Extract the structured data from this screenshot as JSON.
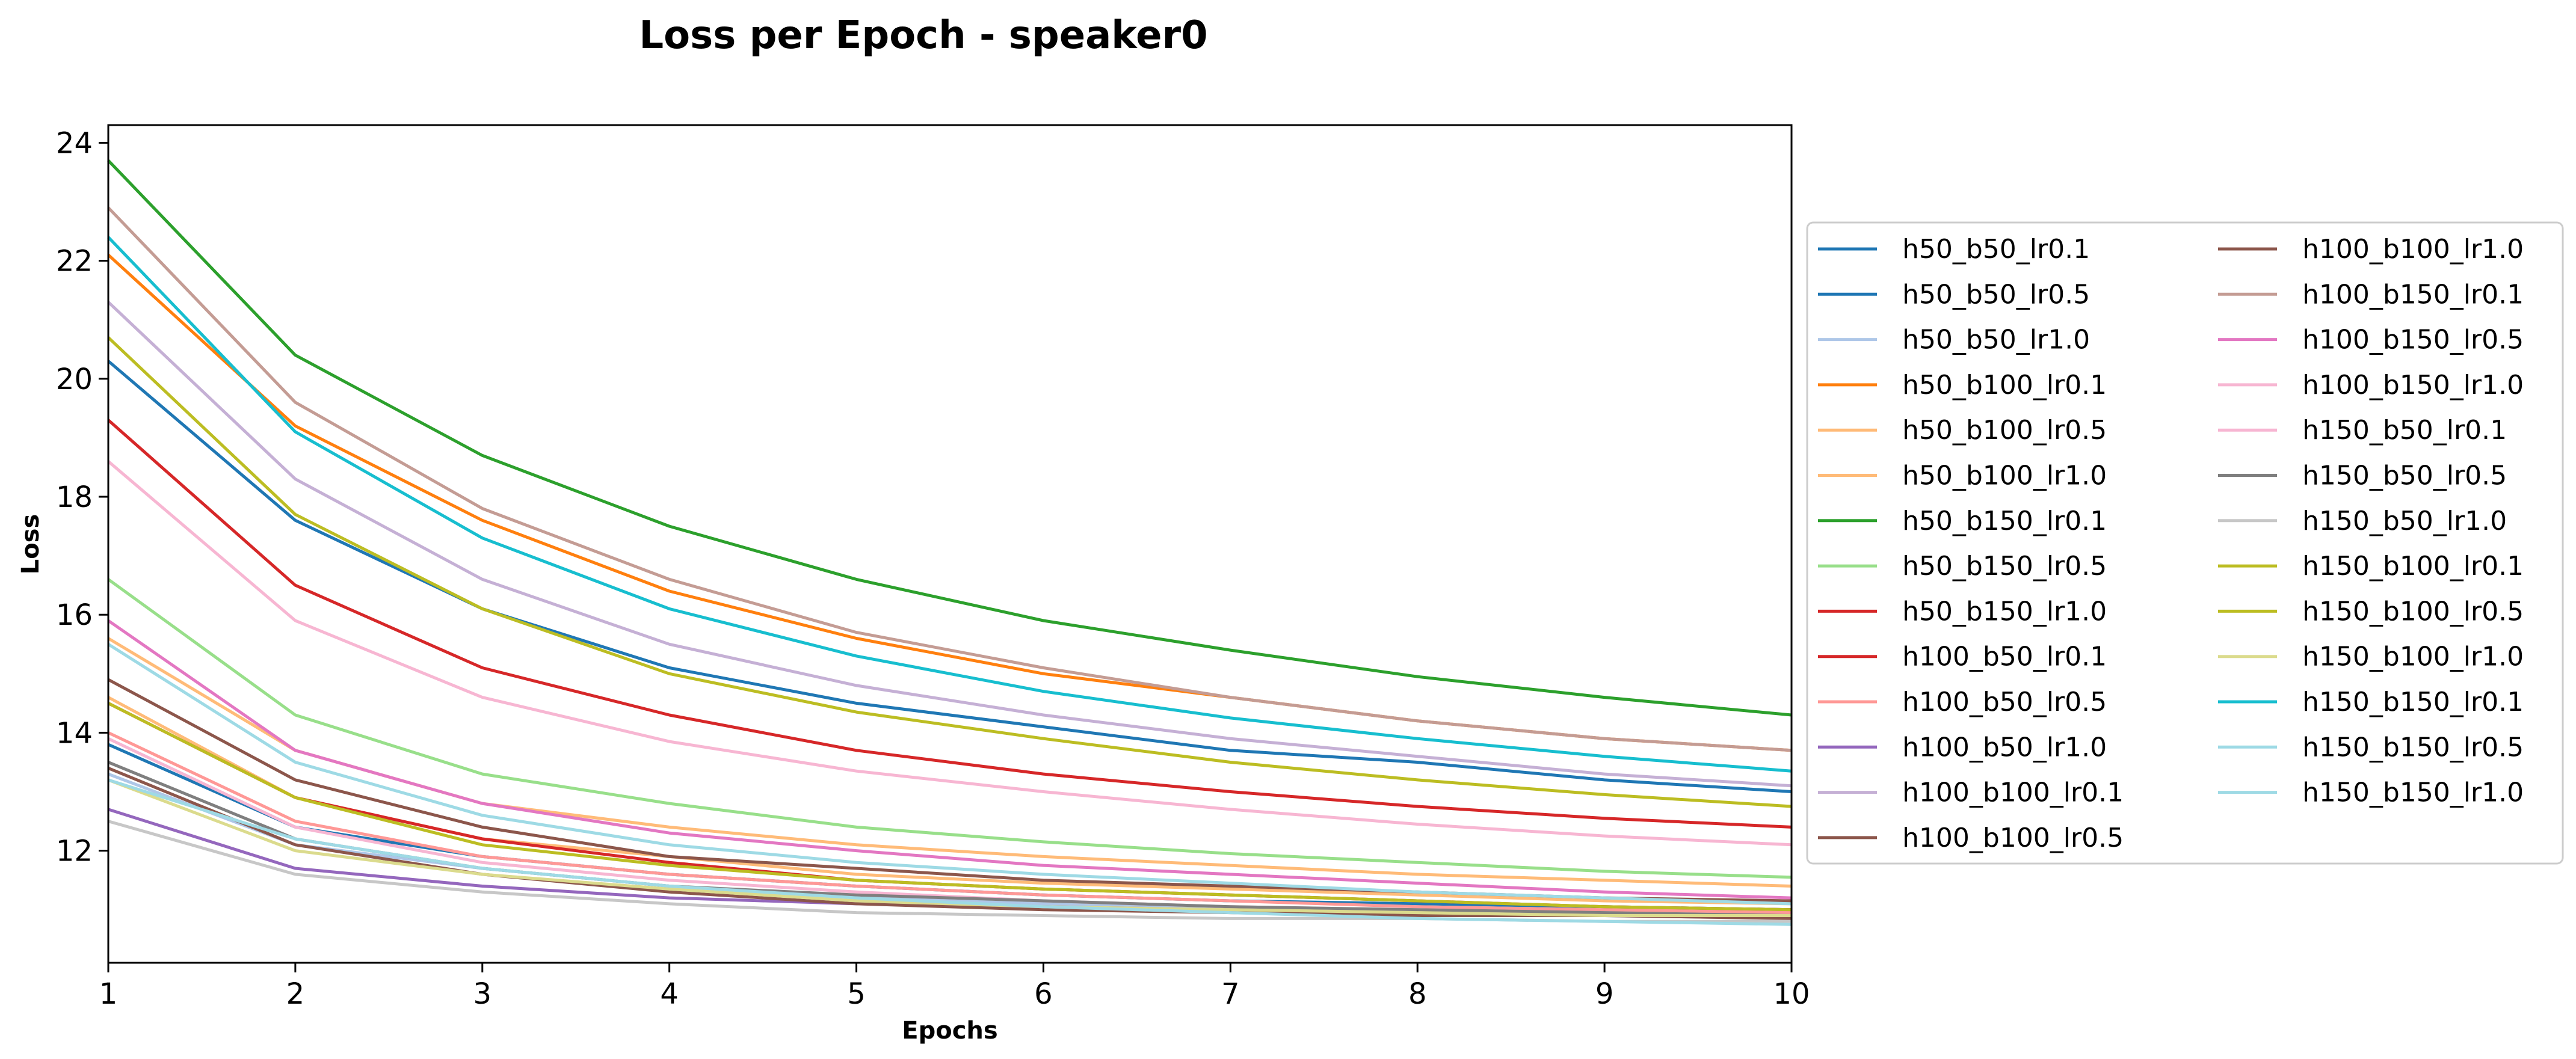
{
  "chart_data": {
    "type": "line",
    "title": "Loss per Epoch - speaker0",
    "xlabel": "Epochs",
    "ylabel": "Loss",
    "x": [
      1,
      2,
      3,
      4,
      5,
      6,
      7,
      8,
      9,
      10
    ],
    "xlim": [
      1,
      10
    ],
    "ylim": [
      10.1,
      24.3
    ],
    "xticks": [
      "1",
      "2",
      "3",
      "4",
      "5",
      "6",
      "7",
      "8",
      "9",
      "10"
    ],
    "yticks": [
      12,
      14,
      16,
      18,
      20,
      22,
      24
    ],
    "grid": false,
    "legend_placement": "right",
    "legend_columns": 2,
    "series": [
      {
        "name": "h50_b50_lr0.1",
        "color": "#1f77b4",
        "values": [
          20.3,
          17.6,
          16.1,
          15.1,
          14.5,
          14.1,
          13.7,
          13.5,
          13.2,
          13.0
        ]
      },
      {
        "name": "h50_b50_lr0.5",
        "color": "#1f77b4",
        "values": [
          13.8,
          12.4,
          11.9,
          11.6,
          11.4,
          11.25,
          11.15,
          11.1,
          11.05,
          11.0
        ]
      },
      {
        "name": "h50_b50_lr1.0",
        "color": "#aec7e8",
        "values": [
          13.3,
          12.1,
          11.7,
          11.4,
          11.2,
          11.1,
          11.0,
          10.95,
          10.9,
          10.85
        ]
      },
      {
        "name": "h50_b100_lr0.1",
        "color": "#ff7f0e",
        "values": [
          22.1,
          19.2,
          17.6,
          16.4,
          15.6,
          15.0,
          14.6,
          14.2,
          13.9,
          13.7
        ]
      },
      {
        "name": "h50_b100_lr0.5",
        "color": "#ffbb78",
        "values": [
          15.6,
          13.7,
          12.8,
          12.4,
          12.1,
          11.9,
          11.75,
          11.6,
          11.5,
          11.4
        ]
      },
      {
        "name": "h50_b100_lr1.0",
        "color": "#ffbb78",
        "values": [
          14.6,
          12.9,
          12.2,
          11.9,
          11.6,
          11.45,
          11.35,
          11.25,
          11.15,
          11.1
        ]
      },
      {
        "name": "h50_b150_lr0.1",
        "color": "#2ca02c",
        "values": [
          23.7,
          20.4,
          18.7,
          17.5,
          16.6,
          15.9,
          15.4,
          14.95,
          14.6,
          14.3
        ]
      },
      {
        "name": "h50_b150_lr0.5",
        "color": "#98df8a",
        "values": [
          16.6,
          14.3,
          13.3,
          12.8,
          12.4,
          12.15,
          11.95,
          11.8,
          11.65,
          11.55
        ]
      },
      {
        "name": "h50_b150_lr1.0",
        "color": "#d62728",
        "values": [
          14.5,
          12.9,
          12.2,
          11.8,
          11.5,
          11.35,
          11.25,
          11.15,
          11.05,
          11.0
        ]
      },
      {
        "name": "h100_b50_lr0.1",
        "color": "#d62728",
        "values": [
          19.3,
          16.5,
          15.1,
          14.3,
          13.7,
          13.3,
          13.0,
          12.75,
          12.55,
          12.4
        ]
      },
      {
        "name": "h100_b50_lr0.5",
        "color": "#ff9896",
        "values": [
          14.0,
          12.5,
          11.9,
          11.6,
          11.4,
          11.25,
          11.15,
          11.05,
          11.0,
          10.95
        ]
      },
      {
        "name": "h100_b50_lr1.0",
        "color": "#9467bd",
        "values": [
          12.7,
          11.7,
          11.4,
          11.2,
          11.1,
          11.05,
          11.0,
          10.95,
          10.9,
          10.9
        ]
      },
      {
        "name": "h100_b100_lr0.1",
        "color": "#c5b0d5",
        "values": [
          21.3,
          18.3,
          16.6,
          15.5,
          14.8,
          14.3,
          13.9,
          13.6,
          13.3,
          13.1
        ]
      },
      {
        "name": "h100_b100_lr0.5",
        "color": "#8c564b",
        "values": [
          13.4,
          12.1,
          11.6,
          11.3,
          11.1,
          11.0,
          10.95,
          10.9,
          10.9,
          10.85
        ]
      },
      {
        "name": "h100_b100_lr1.0",
        "color": "#8c564b",
        "values": [
          14.9,
          13.2,
          12.4,
          11.9,
          11.7,
          11.5,
          11.4,
          11.3,
          11.2,
          11.15
        ]
      },
      {
        "name": "h100_b150_lr0.1",
        "color": "#c49c94",
        "values": [
          22.9,
          19.6,
          17.8,
          16.6,
          15.7,
          15.1,
          14.6,
          14.2,
          13.9,
          13.7
        ]
      },
      {
        "name": "h100_b150_lr0.5",
        "color": "#e377c2",
        "values": [
          15.9,
          13.7,
          12.8,
          12.3,
          12.0,
          11.75,
          11.6,
          11.45,
          11.3,
          11.2
        ]
      },
      {
        "name": "h100_b150_lr1.0",
        "color": "#f7b6d2",
        "values": [
          13.9,
          12.4,
          11.8,
          11.5,
          11.3,
          11.15,
          11.05,
          11.0,
          10.95,
          10.9
        ]
      },
      {
        "name": "h150_b50_lr0.1",
        "color": "#f7b6d2",
        "values": [
          18.6,
          15.9,
          14.6,
          13.85,
          13.35,
          13.0,
          12.7,
          12.45,
          12.25,
          12.1
        ]
      },
      {
        "name": "h150_b50_lr0.5",
        "color": "#7f7f7f",
        "values": [
          13.5,
          12.2,
          11.7,
          11.4,
          11.25,
          11.15,
          11.05,
          11.0,
          10.95,
          10.9
        ]
      },
      {
        "name": "h150_b50_lr1.0",
        "color": "#c7c7c7",
        "values": [
          12.5,
          11.6,
          11.3,
          11.1,
          10.95,
          10.9,
          10.85,
          10.85,
          10.8,
          10.8
        ]
      },
      {
        "name": "h150_b100_lr0.1",
        "color": "#bcbd22",
        "values": [
          20.7,
          17.7,
          16.1,
          15.0,
          14.35,
          13.9,
          13.5,
          13.2,
          12.95,
          12.75
        ]
      },
      {
        "name": "h150_b100_lr0.5",
        "color": "#bcbd22",
        "values": [
          14.5,
          12.9,
          12.1,
          11.75,
          11.5,
          11.35,
          11.25,
          11.15,
          11.05,
          11.0
        ]
      },
      {
        "name": "h150_b100_lr1.0",
        "color": "#dbdb8d",
        "values": [
          13.2,
          12.0,
          11.6,
          11.35,
          11.15,
          11.05,
          11.0,
          10.95,
          10.9,
          10.9
        ]
      },
      {
        "name": "h150_b150_lr0.1",
        "color": "#17becf",
        "values": [
          22.4,
          19.1,
          17.3,
          16.1,
          15.3,
          14.7,
          14.25,
          13.9,
          13.6,
          13.35
        ]
      },
      {
        "name": "h150_b150_lr0.5",
        "color": "#9edae5",
        "values": [
          13.2,
          12.2,
          11.7,
          11.4,
          11.2,
          11.05,
          10.95,
          10.85,
          10.8,
          10.75
        ]
      },
      {
        "name": "h150_b150_lr1.0",
        "color": "#9edae5",
        "values": [
          15.5,
          13.5,
          12.6,
          12.1,
          11.8,
          11.6,
          11.45,
          11.3,
          11.2,
          11.1
        ]
      }
    ]
  }
}
